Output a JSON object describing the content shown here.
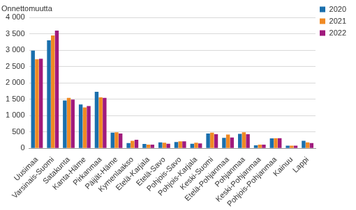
{
  "chart_data": {
    "type": "bar",
    "ylabel": "Onnettomuutta",
    "categories": [
      "Uusimaa",
      "Varsinais-Suomi",
      "Satakunta",
      "Kanta-Häme",
      "Pirkanmaa",
      "Päijät-Häme",
      "Kymenlaakso",
      "Etelä-Karjala",
      "Etelä-Savo",
      "Pohjois-Savo",
      "Pohjois-Karjala",
      "Keski-Suomi",
      "Etelä-Pohjanmaa",
      "Pohjanmaa",
      "Keski-Pohjanmaa",
      "Pohjois-Pohjanmaa",
      "Kainuu",
      "Lappi"
    ],
    "series": [
      {
        "name": "2020",
        "color": "#1a6fad",
        "values": [
          2990,
          3300,
          1460,
          1340,
          1730,
          480,
          160,
          130,
          180,
          190,
          140,
          450,
          320,
          440,
          90,
          300,
          80,
          230
        ]
      },
      {
        "name": "2021",
        "color": "#f08a24",
        "values": [
          2720,
          3450,
          1540,
          1250,
          1560,
          490,
          230,
          110,
          170,
          210,
          170,
          480,
          420,
          490,
          110,
          310,
          80,
          180
        ]
      },
      {
        "name": "2022",
        "color": "#a01a7d",
        "values": [
          2740,
          3600,
          1490,
          1290,
          1540,
          450,
          260,
          110,
          140,
          210,
          150,
          430,
          330,
          430,
          110,
          310,
          80,
          160
        ]
      }
    ],
    "ylim": [
      0,
      4000
    ],
    "yticks": [
      0,
      500,
      {
        "value": 1000,
        "label": "1 000"
      },
      {
        "value": 1500,
        "label": "1 500"
      },
      {
        "value": 2000,
        "label": "2 000"
      },
      {
        "value": 2500,
        "label": "2 500"
      },
      {
        "value": 3000,
        "label": "3 000"
      },
      {
        "value": 3500,
        "label": "3 500"
      },
      {
        "value": 4000,
        "label": "4 000"
      }
    ],
    "grid": true,
    "legend": "right"
  }
}
